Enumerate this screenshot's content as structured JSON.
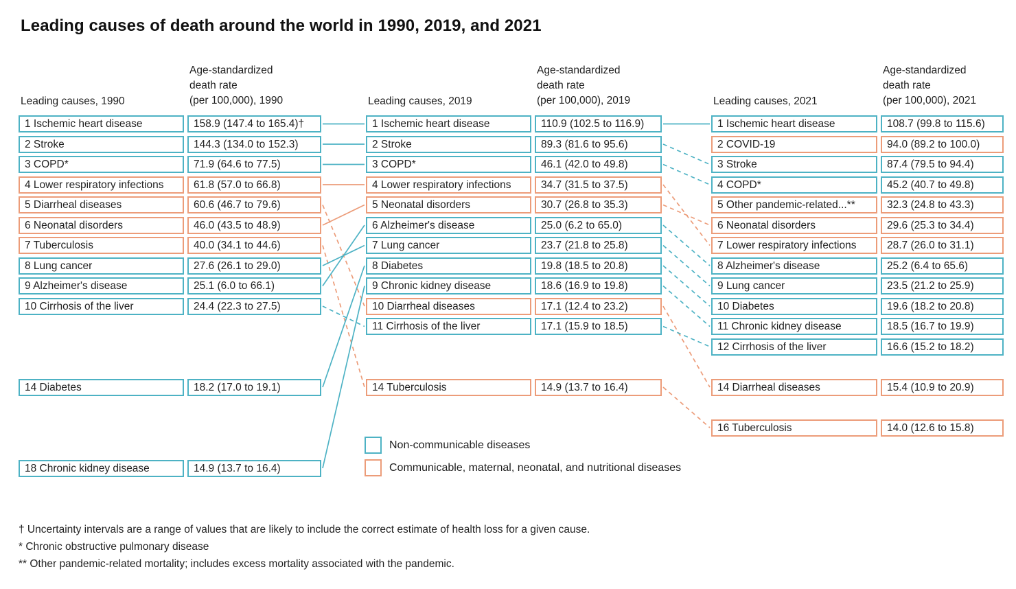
{
  "title": "Leading causes of death around the world in 1990, 2019, and 2021",
  "colors": {
    "ncd": "#4db2c4",
    "cmnn": "#ec9c79",
    "text": "#1e1e1e",
    "background": "#ffffff"
  },
  "legend": {
    "items": [
      {
        "label": "Non-communicable diseases",
        "group": "ncd"
      },
      {
        "label": "Communicable, maternal, neonatal, and nutritional diseases",
        "group": "cmnn"
      }
    ]
  },
  "footnotes": [
    "† Uncertainty intervals are a range of values that are likely to include the correct estimate of health loss for a given cause.",
    "* Chronic obstructive pulmonary disease",
    "** Other pandemic-related mortality; includes excess mortality associated with the pandemic."
  ],
  "chart_data": {
    "type": "table",
    "description": "Ranked leading causes of death with age-standardized death rates per 100,000 (95% uncertainty intervals). Box outline color encodes disease group; connector lines between year columns show rank changes (solid = rank held or improved, dashed = rank dropped).",
    "columns": [
      {
        "year": "1990",
        "causes_header": "Leading causes, 1990",
        "rate_header_lines": [
          "Age-standardized",
          "death rate",
          "(per 100,000), 1990"
        ],
        "rows": [
          {
            "rank": 1,
            "cause": "1 Ischemic heart disease",
            "rate": "158.9 (147.4 to 165.4)†",
            "group": "ncd"
          },
          {
            "rank": 2,
            "cause": "2 Stroke",
            "rate": "144.3 (134.0 to 152.3)",
            "group": "ncd"
          },
          {
            "rank": 3,
            "cause": "3 COPD*",
            "rate": "71.9 (64.6 to 77.5)",
            "group": "ncd"
          },
          {
            "rank": 4,
            "cause": "4 Lower respiratory infections",
            "rate": "61.8 (57.0 to 66.8)",
            "group": "cmnn"
          },
          {
            "rank": 5,
            "cause": "5 Diarrheal diseases",
            "rate": "60.6 (46.7 to 79.6)",
            "group": "cmnn"
          },
          {
            "rank": 6,
            "cause": "6 Neonatal disorders",
            "rate": "46.0 (43.5 to 48.9)",
            "group": "cmnn"
          },
          {
            "rank": 7,
            "cause": "7 Tuberculosis",
            "rate": "40.0 (34.1 to 44.6)",
            "group": "cmnn"
          },
          {
            "rank": 8,
            "cause": "8 Lung cancer",
            "rate": "27.6 (26.1 to 29.0)",
            "group": "ncd"
          },
          {
            "rank": 9,
            "cause": "9 Alzheimer's disease",
            "rate": "25.1 (6.0 to 66.1)",
            "group": "ncd"
          },
          {
            "rank": 10,
            "cause": "10 Cirrhosis of the liver",
            "rate": "24.4 (22.3 to 27.5)",
            "group": "ncd"
          },
          {
            "rank": 14,
            "cause": "14 Diabetes",
            "rate": "18.2 (17.0 to 19.1)",
            "group": "ncd"
          },
          {
            "rank": 18,
            "cause": "18 Chronic kidney disease",
            "rate": "14.9 (13.7 to 16.4)",
            "group": "ncd"
          }
        ]
      },
      {
        "year": "2019",
        "causes_header": "Leading causes, 2019",
        "rate_header_lines": [
          "Age-standardized",
          "death rate",
          "(per 100,000), 2019"
        ],
        "rows": [
          {
            "rank": 1,
            "cause": "1 Ischemic heart disease",
            "rate": "110.9 (102.5 to 116.9)",
            "group": "ncd"
          },
          {
            "rank": 2,
            "cause": "2 Stroke",
            "rate": "89.3 (81.6 to 95.6)",
            "group": "ncd"
          },
          {
            "rank": 3,
            "cause": "3 COPD*",
            "rate": "46.1 (42.0 to 49.8)",
            "group": "ncd"
          },
          {
            "rank": 4,
            "cause": "4 Lower respiratory infections",
            "rate": "34.7 (31.5 to 37.5)",
            "group": "cmnn"
          },
          {
            "rank": 5,
            "cause": "5 Neonatal disorders",
            "rate": "30.7 (26.8 to 35.3)",
            "group": "cmnn"
          },
          {
            "rank": 6,
            "cause": "6 Alzheimer's disease",
            "rate": "25.0 (6.2 to 65.0)",
            "group": "ncd"
          },
          {
            "rank": 7,
            "cause": "7 Lung cancer",
            "rate": "23.7 (21.8 to 25.8)",
            "group": "ncd"
          },
          {
            "rank": 8,
            "cause": "8 Diabetes",
            "rate": "19.8 (18.5 to 20.8)",
            "group": "ncd"
          },
          {
            "rank": 9,
            "cause": "9 Chronic kidney disease",
            "rate": "18.6 (16.9 to 19.8)",
            "group": "ncd"
          },
          {
            "rank": 10,
            "cause": "10 Diarrheal diseases",
            "rate": "17.1 (12.4 to 23.2)",
            "group": "cmnn"
          },
          {
            "rank": 11,
            "cause": "11 Cirrhosis of the liver",
            "rate": "17.1 (15.9 to 18.5)",
            "group": "ncd"
          },
          {
            "rank": 14,
            "cause": "14 Tuberculosis",
            "rate": "14.9 (13.7 to 16.4)",
            "group": "cmnn"
          }
        ]
      },
      {
        "year": "2021",
        "causes_header": "Leading causes, 2021",
        "rate_header_lines": [
          "Age-standardized",
          "death rate",
          "(per 100,000), 2021"
        ],
        "rows": [
          {
            "rank": 1,
            "cause": "1 Ischemic heart disease",
            "rate": "108.7 (99.8 to 115.6)",
            "group": "ncd"
          },
          {
            "rank": 2,
            "cause": "2 COVID-19",
            "rate": "94.0 (89.2 to 100.0)",
            "group": "cmnn"
          },
          {
            "rank": 3,
            "cause": "3 Stroke",
            "rate": "87.4 (79.5 to 94.4)",
            "group": "ncd"
          },
          {
            "rank": 4,
            "cause": "4 COPD*",
            "rate": "45.2 (40.7 to 49.8)",
            "group": "ncd"
          },
          {
            "rank": 5,
            "cause": "5 Other pandemic-related...**",
            "rate": "32.3 (24.8 to 43.3)",
            "group": "cmnn"
          },
          {
            "rank": 6,
            "cause": "6 Neonatal disorders",
            "rate": "29.6 (25.3 to 34.4)",
            "group": "cmnn"
          },
          {
            "rank": 7,
            "cause": "7 Lower respiratory infections",
            "rate": "28.7 (26.0 to 31.1)",
            "group": "cmnn"
          },
          {
            "rank": 8,
            "cause": "8 Alzheimer's disease",
            "rate": "25.2 (6.4 to 65.6)",
            "group": "ncd"
          },
          {
            "rank": 9,
            "cause": "9 Lung cancer",
            "rate": "23.5 (21.2 to 25.9)",
            "group": "ncd"
          },
          {
            "rank": 10,
            "cause": "10 Diabetes",
            "rate": "19.6 (18.2 to 20.8)",
            "group": "ncd"
          },
          {
            "rank": 11,
            "cause": "11 Chronic kidney disease",
            "rate": "18.5 (16.7 to 19.9)",
            "group": "ncd"
          },
          {
            "rank": 12,
            "cause": "12 Cirrhosis of the liver",
            "rate": "16.6 (15.2 to 18.2)",
            "group": "ncd"
          },
          {
            "rank": 14,
            "cause": "14 Diarrheal diseases",
            "rate": "15.4 (10.9 to 20.9)",
            "group": "cmnn"
          },
          {
            "rank": 16,
            "cause": "16 Tuberculosis",
            "rate": "14.0 (12.6 to 15.8)",
            "group": "cmnn"
          }
        ]
      }
    ],
    "links": [
      {
        "from_col": 0,
        "to_col": 1,
        "from_rank": 1,
        "to_rank": 1,
        "style": "solid",
        "group": "ncd"
      },
      {
        "from_col": 0,
        "to_col": 1,
        "from_rank": 2,
        "to_rank": 2,
        "style": "solid",
        "group": "ncd"
      },
      {
        "from_col": 0,
        "to_col": 1,
        "from_rank": 3,
        "to_rank": 3,
        "style": "solid",
        "group": "ncd"
      },
      {
        "from_col": 0,
        "to_col": 1,
        "from_rank": 4,
        "to_rank": 4,
        "style": "solid",
        "group": "cmnn"
      },
      {
        "from_col": 0,
        "to_col": 1,
        "from_rank": 5,
        "to_rank": 10,
        "style": "dashed",
        "group": "cmnn"
      },
      {
        "from_col": 0,
        "to_col": 1,
        "from_rank": 6,
        "to_rank": 5,
        "style": "solid",
        "group": "cmnn"
      },
      {
        "from_col": 0,
        "to_col": 1,
        "from_rank": 7,
        "to_rank": 14,
        "style": "dashed",
        "group": "cmnn"
      },
      {
        "from_col": 0,
        "to_col": 1,
        "from_rank": 8,
        "to_rank": 7,
        "style": "solid",
        "group": "ncd"
      },
      {
        "from_col": 0,
        "to_col": 1,
        "from_rank": 9,
        "to_rank": 6,
        "style": "solid",
        "group": "ncd"
      },
      {
        "from_col": 0,
        "to_col": 1,
        "from_rank": 10,
        "to_rank": 11,
        "style": "dashed",
        "group": "ncd"
      },
      {
        "from_col": 0,
        "to_col": 1,
        "from_rank": 14,
        "to_rank": 8,
        "style": "solid",
        "group": "ncd"
      },
      {
        "from_col": 0,
        "to_col": 1,
        "from_rank": 18,
        "to_rank": 9,
        "style": "solid",
        "group": "ncd"
      },
      {
        "from_col": 1,
        "to_col": 2,
        "from_rank": 1,
        "to_rank": 1,
        "style": "solid",
        "group": "ncd"
      },
      {
        "from_col": 1,
        "to_col": 2,
        "from_rank": 2,
        "to_rank": 3,
        "style": "dashed",
        "group": "ncd"
      },
      {
        "from_col": 1,
        "to_col": 2,
        "from_rank": 3,
        "to_rank": 4,
        "style": "dashed",
        "group": "ncd"
      },
      {
        "from_col": 1,
        "to_col": 2,
        "from_rank": 4,
        "to_rank": 7,
        "style": "dashed",
        "group": "cmnn"
      },
      {
        "from_col": 1,
        "to_col": 2,
        "from_rank": 5,
        "to_rank": 6,
        "style": "dashed",
        "group": "cmnn"
      },
      {
        "from_col": 1,
        "to_col": 2,
        "from_rank": 6,
        "to_rank": 8,
        "style": "dashed",
        "group": "ncd"
      },
      {
        "from_col": 1,
        "to_col": 2,
        "from_rank": 7,
        "to_rank": 9,
        "style": "dashed",
        "group": "ncd"
      },
      {
        "from_col": 1,
        "to_col": 2,
        "from_rank": 8,
        "to_rank": 10,
        "style": "dashed",
        "group": "ncd"
      },
      {
        "from_col": 1,
        "to_col": 2,
        "from_rank": 9,
        "to_rank": 11,
        "style": "dashed",
        "group": "ncd"
      },
      {
        "from_col": 1,
        "to_col": 2,
        "from_rank": 10,
        "to_rank": 14,
        "style": "dashed",
        "group": "cmnn"
      },
      {
        "from_col": 1,
        "to_col": 2,
        "from_rank": 11,
        "to_rank": 12,
        "style": "dashed",
        "group": "ncd"
      },
      {
        "from_col": 1,
        "to_col": 2,
        "from_rank": 14,
        "to_rank": 16,
        "style": "dashed",
        "group": "cmnn"
      }
    ]
  }
}
